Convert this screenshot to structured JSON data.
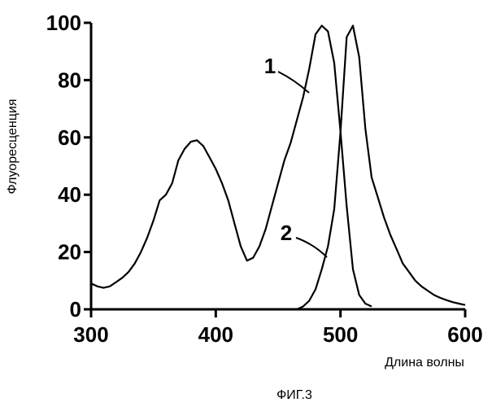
{
  "chart_data": {
    "type": "line",
    "title": "",
    "xlabel": "Длина волны",
    "ylabel": "Флуоресценция",
    "caption": "ФИГ.3",
    "xlim": [
      300,
      600
    ],
    "ylim": [
      0,
      100
    ],
    "x_ticks": [
      300,
      400,
      500,
      600
    ],
    "y_ticks": [
      0,
      20,
      40,
      60,
      80,
      100
    ],
    "grid": false,
    "series": [
      {
        "name": "1",
        "x": [
          300,
          305,
          310,
          315,
          320,
          325,
          330,
          335,
          340,
          345,
          350,
          355,
          360,
          365,
          370,
          375,
          380,
          385,
          390,
          395,
          400,
          405,
          410,
          415,
          420,
          425,
          430,
          435,
          440,
          445,
          450,
          455,
          460,
          465,
          470,
          475,
          480,
          485,
          490,
          495,
          500,
          505,
          510,
          515,
          520,
          525
        ],
        "y": [
          9,
          8,
          7.5,
          8,
          9.5,
          11,
          13,
          16,
          20,
          25,
          31,
          38,
          40,
          44,
          52,
          56,
          58.5,
          59,
          57,
          53,
          49,
          44,
          38,
          30,
          22,
          17,
          18,
          22,
          28,
          36,
          44,
          52,
          58,
          66,
          74,
          84,
          96,
          99,
          97,
          86,
          62,
          36,
          14,
          5,
          2,
          1
        ]
      },
      {
        "name": "2",
        "x": [
          465,
          470,
          475,
          480,
          485,
          490,
          495,
          500,
          505,
          510,
          515,
          520,
          525,
          530,
          535,
          540,
          545,
          550,
          555,
          560,
          565,
          570,
          575,
          580,
          585,
          590,
          595,
          600
        ],
        "y": [
          0,
          1,
          3,
          7,
          14,
          22,
          35,
          62,
          95,
          99,
          88,
          63,
          46,
          39,
          32,
          26,
          21,
          16,
          13,
          10,
          8,
          6.5,
          5,
          4,
          3.2,
          2.5,
          2,
          1.5
        ]
      }
    ]
  }
}
